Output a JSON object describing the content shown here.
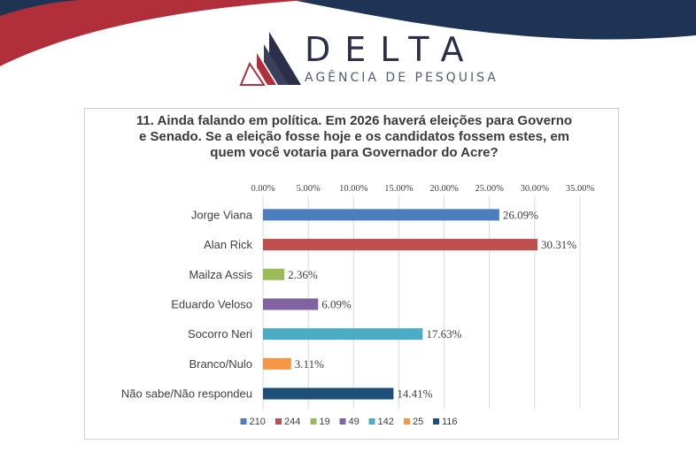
{
  "brand": {
    "name": "DELTA",
    "subtitle": "AGÊNCIA DE PESQUISA",
    "colors": {
      "navy": "#1f3354",
      "red": "#a8343a",
      "dark": "#2b2f4a"
    }
  },
  "chart_data": {
    "type": "bar",
    "orientation": "horizontal",
    "title": "11. Ainda falando em política. Em 2026 haverá eleições para Governo e Senado. Se a eleição fosse hoje e os candidatos fossem estes, em quem você votaria para Governador do Acre?",
    "categories": [
      "Jorge Viana",
      "Alan Rick",
      "Mailza Assis",
      "Eduardo Veloso",
      "Socorro Neri",
      "Branco/Nulo",
      "Não sabe/Não respondeu"
    ],
    "values": [
      26.09,
      30.31,
      2.36,
      6.09,
      17.63,
      3.11,
      14.41
    ],
    "value_labels": [
      "26.09%",
      "30.31%",
      "2.36%",
      "6.09%",
      "17.63%",
      "3.11%",
      "14.41%"
    ],
    "colors": [
      "#4a7ebf",
      "#c0504d",
      "#9bbb59",
      "#8064a2",
      "#4bacc6",
      "#f79646",
      "#1f4e79"
    ],
    "xlim": [
      0,
      35
    ],
    "x_ticks": [
      "0.00%",
      "5.00%",
      "10.00%",
      "15.00%",
      "20.00%",
      "25.00%",
      "30.00%",
      "35.00%"
    ],
    "x_axis_position": "top",
    "grid": true,
    "legend": {
      "placement": "bottom",
      "entries": [
        "210",
        "244",
        "19",
        "49",
        "142",
        "25",
        "116"
      ]
    }
  }
}
